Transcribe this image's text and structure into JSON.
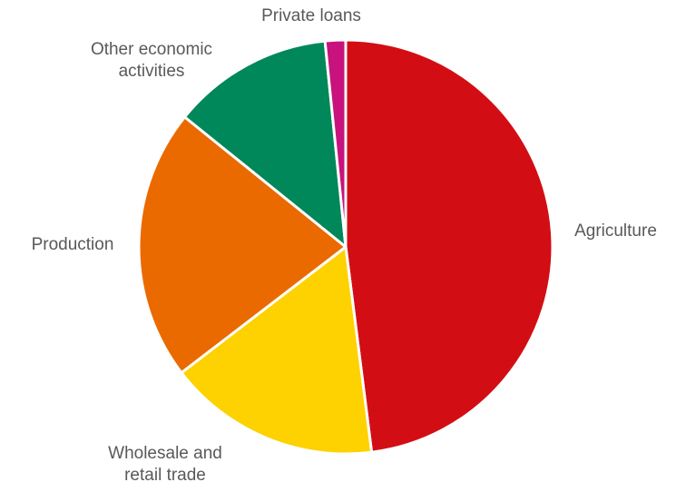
{
  "chart_data": {
    "type": "pie",
    "slices": [
      {
        "label": "Agriculture",
        "value": 48.0,
        "color": "#D20E14"
      },
      {
        "label": "Wholesale and\nretail trade",
        "value": 16.6,
        "color": "#FED100"
      },
      {
        "label": "Production",
        "value": 21.2,
        "color": "#EA6A00"
      },
      {
        "label": "Other economic\nactivities",
        "value": 12.6,
        "color": "#00875A"
      },
      {
        "label": "Private loans",
        "value": 1.6,
        "color": "#C8127D"
      }
    ],
    "start_angle_deg": 0,
    "direction": "clockwise",
    "legend": "none",
    "data_labels": "category names outside slices"
  }
}
